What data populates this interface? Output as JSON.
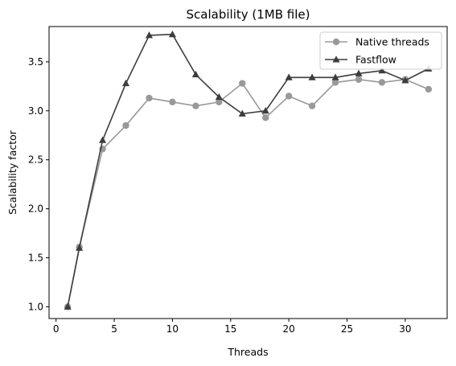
{
  "chart_data": {
    "type": "line",
    "title": "Scalability (1MB file)",
    "xlabel": "Threads",
    "ylabel": "Scalability factor",
    "xlim": [
      -0.6,
      33.6
    ],
    "ylim": [
      0.88,
      3.86
    ],
    "xticks": [
      0,
      5,
      10,
      15,
      20,
      25,
      30
    ],
    "yticks": [
      1.0,
      1.5,
      2.0,
      2.5,
      3.0,
      3.5
    ],
    "ytick_labels": [
      "1.0",
      "1.5",
      "2.0",
      "2.5",
      "3.0",
      "3.5"
    ],
    "grid": false,
    "legend_position": "top-right",
    "series": [
      {
        "name": "Native threads",
        "marker": "circle",
        "color": "#999999",
        "x": [
          1,
          2,
          4,
          6,
          8,
          10,
          12,
          14,
          16,
          18,
          20,
          22,
          24,
          26,
          28,
          30,
          32
        ],
        "y": [
          1.0,
          1.61,
          2.61,
          2.85,
          3.13,
          3.09,
          3.05,
          3.09,
          3.28,
          2.93,
          3.15,
          3.05,
          3.29,
          3.32,
          3.29,
          3.32,
          3.22
        ]
      },
      {
        "name": "Fastflow",
        "marker": "triangle",
        "color": "#3d3d3d",
        "x": [
          1,
          2,
          4,
          6,
          8,
          10,
          12,
          14,
          16,
          18,
          20,
          22,
          24,
          26,
          28,
          30,
          32
        ],
        "y": [
          1.0,
          1.6,
          2.7,
          3.28,
          3.77,
          3.78,
          3.37,
          3.14,
          2.97,
          3.0,
          3.34,
          3.34,
          3.34,
          3.38,
          3.41,
          3.31,
          3.43
        ]
      }
    ]
  }
}
